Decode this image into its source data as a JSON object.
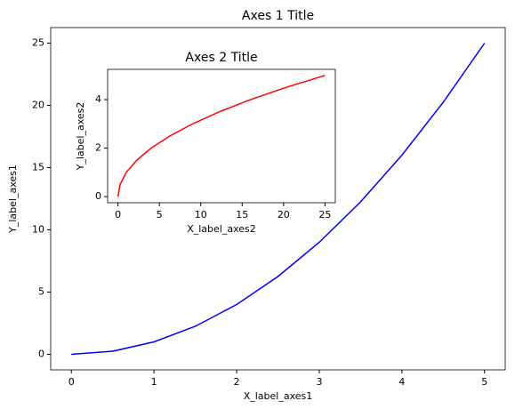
{
  "chart_data": [
    {
      "type": "line",
      "title": "Axes 1 Title",
      "xlabel": "X_label_axes1",
      "ylabel": "Y_label_axes1",
      "x": [
        0,
        0.5,
        1,
        1.5,
        2,
        2.5,
        3,
        3.5,
        4,
        4.5,
        5
      ],
      "values": [
        0,
        0.25,
        1,
        2.25,
        4,
        6.25,
        9,
        12.25,
        16,
        20.25,
        25
      ],
      "color": "#0000ff",
      "xlim": [
        -0.25,
        5.25
      ],
      "ylim": [
        -1.25,
        26.25
      ],
      "xticks": [
        0,
        1,
        2,
        3,
        4,
        5
      ],
      "yticks": [
        0,
        5,
        10,
        15,
        20,
        25
      ],
      "grid": false
    },
    {
      "type": "line",
      "title": "Axes 2 Title",
      "xlabel": "X_label_axes2",
      "ylabel": "Y_label_axes2",
      "x": [
        0,
        0.25,
        1,
        2.25,
        4,
        6.25,
        9,
        12.25,
        16,
        20.25,
        25
      ],
      "values": [
        0,
        0.5,
        1,
        1.5,
        2,
        2.5,
        3,
        3.5,
        4,
        4.5,
        5
      ],
      "color": "#ff0000",
      "xlim": [
        -1.25,
        26.25
      ],
      "ylim": [
        -0.25,
        5.25
      ],
      "xticks": [
        0,
        5,
        10,
        15,
        20,
        25
      ],
      "yticks": [
        0,
        2,
        4
      ],
      "grid": false
    }
  ]
}
